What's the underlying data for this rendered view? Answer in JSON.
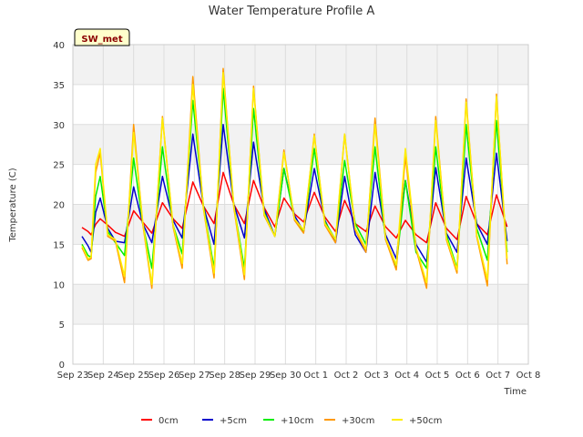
{
  "chart_data": {
    "type": "line",
    "title": "Water Temperature Profile A",
    "xlabel": "Time",
    "ylabel": "Temperature (C)",
    "station_label": "SW_met",
    "ylim": [
      0,
      40
    ],
    "yticks": [
      0,
      5,
      10,
      15,
      20,
      25,
      30,
      35,
      40
    ],
    "xlim": [
      0,
      15
    ],
    "xticks": [
      {
        "pos": 0,
        "label": "Sep 23"
      },
      {
        "pos": 1,
        "label": "Sep 24"
      },
      {
        "pos": 2,
        "label": "Sep 25"
      },
      {
        "pos": 3,
        "label": "Sep 26"
      },
      {
        "pos": 4,
        "label": "Sep 27"
      },
      {
        "pos": 5,
        "label": "Sep 28"
      },
      {
        "pos": 6,
        "label": "Sep 29"
      },
      {
        "pos": 7,
        "label": "Sep 30"
      },
      {
        "pos": 8,
        "label": "Oct 1"
      },
      {
        "pos": 9,
        "label": "Oct 2"
      },
      {
        "pos": 10,
        "label": "Oct 3"
      },
      {
        "pos": 11,
        "label": "Oct 4"
      },
      {
        "pos": 12,
        "label": "Oct 5"
      },
      {
        "pos": 13,
        "label": "Oct 6"
      },
      {
        "pos": 14,
        "label": "Oct 7"
      },
      {
        "pos": 15,
        "label": "Oct 8"
      }
    ],
    "grid": true,
    "legend_position": "bottom",
    "series": [
      {
        "name": "0cm",
        "color": "#ff0000",
        "x": [
          0.3,
          0.5,
          0.6,
          0.75,
          0.9,
          1.15,
          1.4,
          1.7,
          2.0,
          2.3,
          2.6,
          2.95,
          3.3,
          3.6,
          3.95,
          4.3,
          4.65,
          4.95,
          5.3,
          5.65,
          5.95,
          6.3,
          6.65,
          6.95,
          7.3,
          7.6,
          7.95,
          8.3,
          8.65,
          8.95,
          9.3,
          9.65,
          9.95,
          10.3,
          10.65,
          10.95,
          11.3,
          11.65,
          11.95,
          12.3,
          12.65,
          12.95,
          13.3,
          13.65,
          13.95,
          14.3
        ],
        "y": [
          17.1,
          16.6,
          16.2,
          17.5,
          18.2,
          17.4,
          16.5,
          16.0,
          19.2,
          17.8,
          16.4,
          20.2,
          18.2,
          17.0,
          22.8,
          19.8,
          17.6,
          24.0,
          20.0,
          17.6,
          23.0,
          19.6,
          17.2,
          20.8,
          18.8,
          17.8,
          21.5,
          18.4,
          16.6,
          20.5,
          17.6,
          16.6,
          19.8,
          17.2,
          15.8,
          18.0,
          16.2,
          15.2,
          20.2,
          17.0,
          15.6,
          21.0,
          17.6,
          16.2,
          21.2,
          17.2
        ]
      },
      {
        "name": "+5cm",
        "color": "#0000cc",
        "x": [
          0.3,
          0.5,
          0.6,
          0.75,
          0.9,
          1.15,
          1.4,
          1.7,
          2.0,
          2.3,
          2.6,
          2.95,
          3.3,
          3.6,
          3.95,
          4.3,
          4.65,
          4.95,
          5.3,
          5.65,
          5.95,
          6.3,
          6.65,
          6.95,
          7.3,
          7.6,
          7.95,
          8.3,
          8.65,
          8.95,
          9.3,
          9.65,
          9.95,
          10.3,
          10.65,
          10.95,
          11.3,
          11.65,
          11.95,
          12.3,
          12.65,
          12.95,
          13.3,
          13.65,
          13.95,
          14.3
        ],
        "y": [
          16.0,
          14.8,
          14.0,
          19.0,
          20.8,
          17.0,
          15.4,
          15.2,
          22.2,
          17.6,
          15.2,
          23.5,
          18.0,
          15.8,
          28.8,
          19.8,
          15.0,
          30.0,
          20.0,
          15.8,
          27.8,
          19.4,
          16.0,
          24.5,
          18.6,
          16.6,
          24.5,
          18.0,
          15.2,
          23.5,
          16.2,
          14.0,
          24.0,
          16.2,
          13.2,
          23.0,
          15.0,
          12.8,
          24.6,
          16.4,
          14.0,
          25.8,
          17.6,
          15.0,
          26.4,
          15.4
        ]
      },
      {
        "name": "+10cm",
        "color": "#00ee00",
        "x": [
          0.3,
          0.5,
          0.6,
          0.75,
          0.9,
          1.15,
          1.4,
          1.7,
          2.0,
          2.3,
          2.6,
          2.95,
          3.3,
          3.6,
          3.95,
          4.3,
          4.65,
          4.95,
          5.3,
          5.65,
          5.95,
          6.3,
          6.65,
          6.95,
          7.3,
          7.6,
          7.95,
          8.3,
          8.65,
          8.95,
          9.3,
          9.65,
          9.95,
          10.3,
          10.65,
          10.95,
          11.3,
          11.65,
          11.95,
          12.3,
          12.65,
          12.95,
          13.3,
          13.65,
          13.95,
          14.3
        ],
        "y": [
          15.0,
          13.6,
          13.4,
          21.0,
          23.5,
          16.6,
          15.2,
          13.6,
          25.8,
          17.6,
          12.0,
          27.2,
          17.4,
          13.8,
          33.0,
          19.8,
          12.0,
          34.5,
          19.8,
          12.0,
          32.0,
          19.0,
          16.0,
          24.5,
          18.2,
          16.6,
          27.0,
          17.8,
          15.6,
          25.5,
          17.6,
          15.0,
          27.2,
          15.6,
          12.2,
          23.0,
          14.0,
          12.0,
          27.2,
          16.2,
          12.0,
          30.0,
          17.0,
          13.0,
          30.5,
          14.0
        ]
      },
      {
        "name": "+30cm",
        "color": "#ff9900",
        "x": [
          0.3,
          0.5,
          0.6,
          0.75,
          0.9,
          1.15,
          1.4,
          1.7,
          2.0,
          2.3,
          2.6,
          2.95,
          3.3,
          3.6,
          3.95,
          4.3,
          4.65,
          4.95,
          5.3,
          5.65,
          5.95,
          6.3,
          6.65,
          6.95,
          7.3,
          7.6,
          7.95,
          8.3,
          8.65,
          8.95,
          9.3,
          9.65,
          9.95,
          10.3,
          10.65,
          10.95,
          11.3,
          11.65,
          11.95,
          12.3,
          12.65,
          12.95,
          13.3,
          13.65,
          13.95,
          14.3
        ],
        "y": [
          14.6,
          13.0,
          13.2,
          24.0,
          26.5,
          16.0,
          15.4,
          10.2,
          30.0,
          17.6,
          9.5,
          31.0,
          17.2,
          12.0,
          36.0,
          19.5,
          10.8,
          37.0,
          19.6,
          10.6,
          34.8,
          18.6,
          16.0,
          26.8,
          18.0,
          16.4,
          28.8,
          17.4,
          15.2,
          28.8,
          16.8,
          14.0,
          30.8,
          15.6,
          11.8,
          26.0,
          14.4,
          9.5,
          31.0,
          15.6,
          11.4,
          33.2,
          16.0,
          9.8,
          33.8,
          12.5
        ]
      },
      {
        "name": "+50cm",
        "color": "#ffee00",
        "x": [
          0.3,
          0.5,
          0.6,
          0.75,
          0.9,
          1.15,
          1.4,
          1.7,
          2.0,
          2.3,
          2.6,
          2.95,
          3.3,
          3.6,
          3.95,
          4.3,
          4.65,
          4.95,
          5.3,
          5.65,
          5.95,
          6.3,
          6.65,
          6.95,
          7.3,
          7.6,
          7.95,
          8.3,
          8.65,
          8.95,
          9.3,
          9.65,
          9.95,
          10.3,
          10.65,
          10.95,
          11.3,
          11.65,
          11.95,
          12.3,
          12.65,
          12.95,
          13.3,
          13.65,
          13.95,
          14.3
        ],
        "y": [
          14.8,
          13.2,
          13.4,
          25.0,
          27.0,
          16.2,
          15.6,
          11.0,
          29.0,
          17.8,
          10.0,
          30.8,
          17.4,
          12.6,
          35.0,
          19.6,
          11.4,
          36.5,
          19.8,
          11.2,
          34.5,
          18.8,
          16.0,
          26.5,
          18.2,
          16.8,
          28.6,
          17.6,
          15.6,
          28.8,
          17.0,
          14.4,
          30.0,
          15.8,
          12.4,
          27.0,
          14.6,
          10.2,
          30.5,
          15.8,
          11.8,
          32.8,
          16.2,
          10.6,
          33.5,
          13.2
        ]
      }
    ]
  }
}
